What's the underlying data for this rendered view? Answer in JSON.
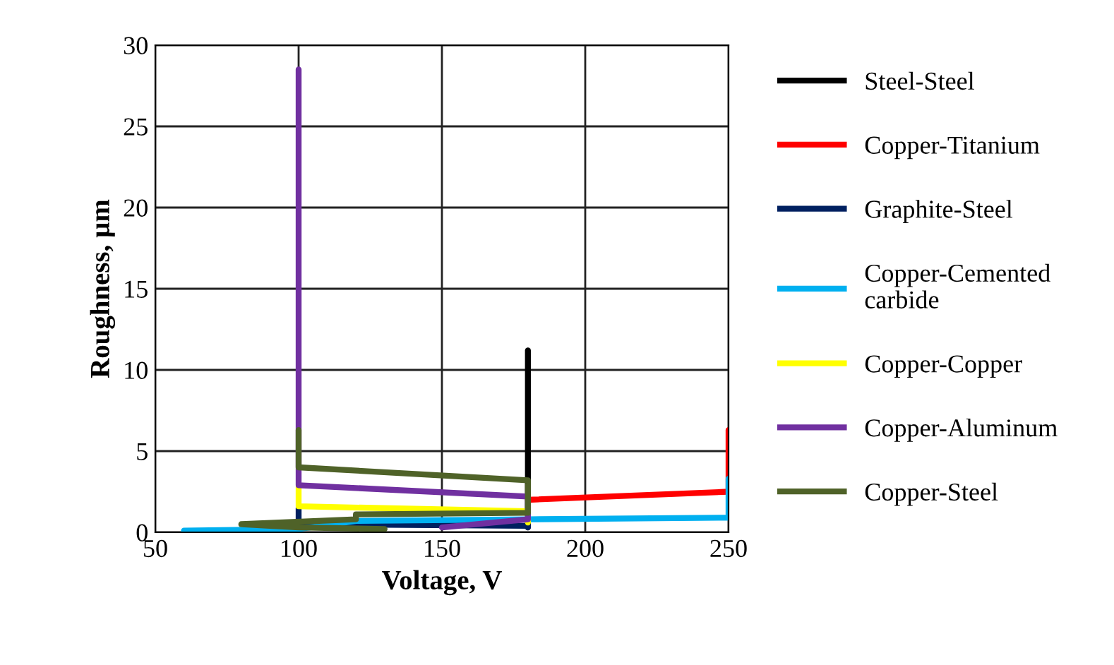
{
  "chart_data": {
    "type": "line",
    "xlabel": "Voltage, V",
    "ylabel": "Roughness, µm",
    "xlim": [
      50,
      250
    ],
    "xticks": [
      50,
      100,
      150,
      200,
      250
    ],
    "ylim": [
      0,
      30
    ],
    "yticks": [
      0,
      5,
      10,
      15,
      20,
      25,
      30
    ],
    "grid": true,
    "legend": "right",
    "marker": "none",
    "line_style": "solid",
    "series": [
      {
        "name": "Steel-Steel",
        "color": "#000000",
        "x": [
          180,
          180
        ],
        "values": [
          0.3,
          11.2
        ]
      },
      {
        "name": "Copper-Titanium",
        "color": "#ff0000",
        "x": [
          180,
          250,
          250
        ],
        "values": [
          2.0,
          2.5,
          6.3
        ]
      },
      {
        "name": "Graphite-Steel",
        "color": "#002060",
        "x": [
          100,
          100,
          180,
          180
        ],
        "values": [
          1.5,
          0.5,
          0.4,
          0.3
        ]
      },
      {
        "name": "Copper-Cemented carbide",
        "color": "#00b0f0",
        "x": [
          60,
          100,
          120,
          180,
          250,
          250
        ],
        "values": [
          0.1,
          0.2,
          0.7,
          0.8,
          0.9,
          3.3
        ]
      },
      {
        "name": "Copper-Copper",
        "color": "#ffff00",
        "x": [
          100,
          100,
          180,
          180
        ],
        "values": [
          2.8,
          1.6,
          1.3,
          0.6
        ]
      },
      {
        "name": "Copper-Aluminum",
        "color": "#7030a0",
        "x": [
          100,
          100,
          180,
          180,
          150
        ],
        "values": [
          28.5,
          2.9,
          2.2,
          0.8,
          0.3
        ]
      },
      {
        "name": "Copper-Steel",
        "color": "#4f6228",
        "x": [
          100,
          100,
          180,
          180,
          120,
          120,
          80,
          100,
          130
        ],
        "values": [
          6.3,
          4.0,
          3.2,
          1.2,
          1.1,
          0.8,
          0.5,
          0.3,
          0.2
        ]
      }
    ]
  }
}
